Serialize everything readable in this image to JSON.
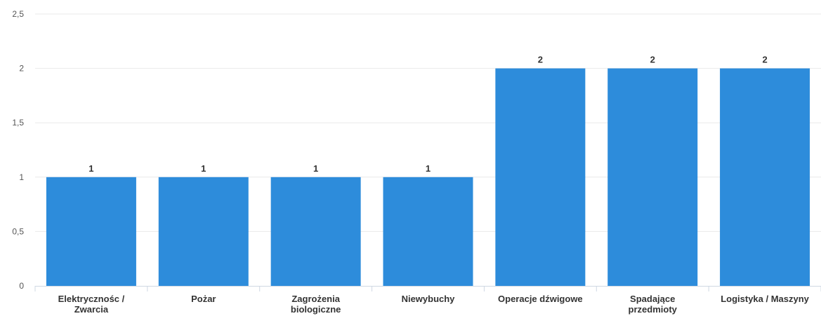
{
  "chart_data": {
    "type": "bar",
    "categories": [
      [
        "Elektrycznośc /",
        "Zwarcia"
      ],
      [
        "Pożar"
      ],
      [
        "Zagrożenia",
        "biologiczne"
      ],
      [
        "Niewybuchy"
      ],
      [
        "Operacje dźwigowe"
      ],
      [
        "Spadające",
        "przedmioty"
      ],
      [
        "Logistyka / Maszyny"
      ]
    ],
    "values": [
      1,
      1,
      1,
      1,
      2,
      2,
      2
    ],
    "value_labels": [
      "1",
      "1",
      "1",
      "1",
      "2",
      "2",
      "2"
    ],
    "ylim": [
      0,
      2.5
    ],
    "yticks": [
      0,
      0.5,
      1,
      1.5,
      2,
      2.5
    ],
    "ytick_labels": [
      "0",
      "0,5",
      "1",
      "1,5",
      "2",
      "2,5"
    ],
    "bar_color": "#2d8cdb",
    "grid": true,
    "legend": "none",
    "title": "",
    "xlabel": "",
    "ylabel": ""
  }
}
